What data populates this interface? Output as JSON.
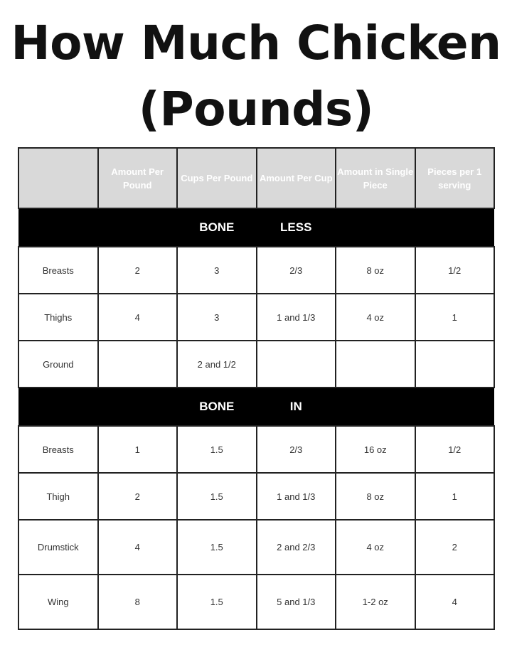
{
  "title": {
    "line1": "How Much Chicken",
    "line2": "(Pounds)"
  },
  "colors": {
    "header_bg": "#d9d9d9",
    "header_text": "#ffffff",
    "section_bg": "#000000"
  },
  "table": {
    "headers": [
      "",
      "Amount Per Pound",
      "Cups Per Pound",
      "Amount Per Cup",
      "Amount in Single Piece",
      "Pieces per 1 serving"
    ],
    "sections": [
      {
        "label_left": "BONE",
        "label_right": "LESS",
        "rows": [
          [
            "Breasts",
            "2",
            "3",
            "2/3",
            "8 oz",
            "1/2"
          ],
          [
            "Thighs",
            "4",
            "3",
            "1 and 1/3",
            "4 oz",
            "1"
          ],
          [
            "Ground",
            "",
            "2 and 1/2",
            "",
            "",
            ""
          ]
        ]
      },
      {
        "label_left": "BONE",
        "label_right": "IN",
        "rows": [
          [
            "Breasts",
            "1",
            "1.5",
            "2/3",
            "16 oz",
            "1/2"
          ],
          [
            "Thigh",
            "2",
            "1.5",
            "1 and 1/3",
            "8 oz",
            "1"
          ],
          [
            "Drumstick",
            "4",
            "1.5",
            "2 and 2/3",
            "4 oz",
            "2"
          ],
          [
            "Wing",
            "8",
            "1.5",
            "5 and 1/3",
            "1-2 oz",
            "4"
          ]
        ]
      }
    ]
  }
}
